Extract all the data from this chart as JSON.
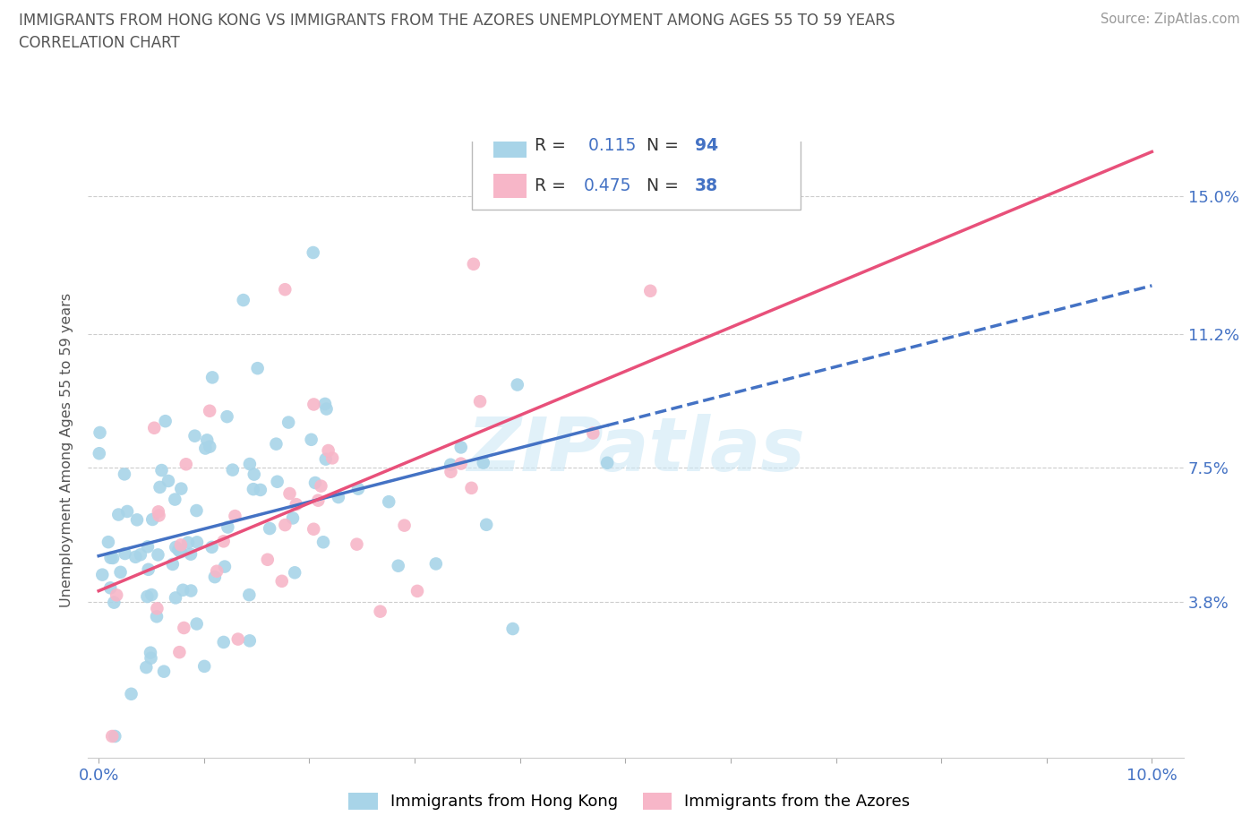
{
  "title_line1": "IMMIGRANTS FROM HONG KONG VS IMMIGRANTS FROM THE AZORES UNEMPLOYMENT AMONG AGES 55 TO 59 YEARS",
  "title_line2": "CORRELATION CHART",
  "source_text": "Source: ZipAtlas.com",
  "ylabel": "Unemployment Among Ages 55 to 59 years",
  "xlim": [
    0.0,
    0.1
  ],
  "ylim": [
    0.0,
    0.16
  ],
  "ytick_positions": [
    0.038,
    0.075,
    0.112,
    0.15
  ],
  "ytick_labels": [
    "3.8%",
    "7.5%",
    "11.2%",
    "15.0%"
  ],
  "watermark_text": "ZIPatlas",
  "legend_hk_r": "0.115",
  "legend_hk_n": "94",
  "legend_az_r": "0.475",
  "legend_az_n": "38",
  "color_hk": "#a8d4e8",
  "color_az": "#f7b6c8",
  "color_hk_line_solid": "#4472c4",
  "color_az_line": "#e8507a",
  "title_color": "#555555",
  "tick_color": "#4472c4",
  "ylabel_color": "#555555",
  "source_color": "#999999",
  "legend_text_dark": "#333333",
  "legend_num_color": "#4472c4"
}
